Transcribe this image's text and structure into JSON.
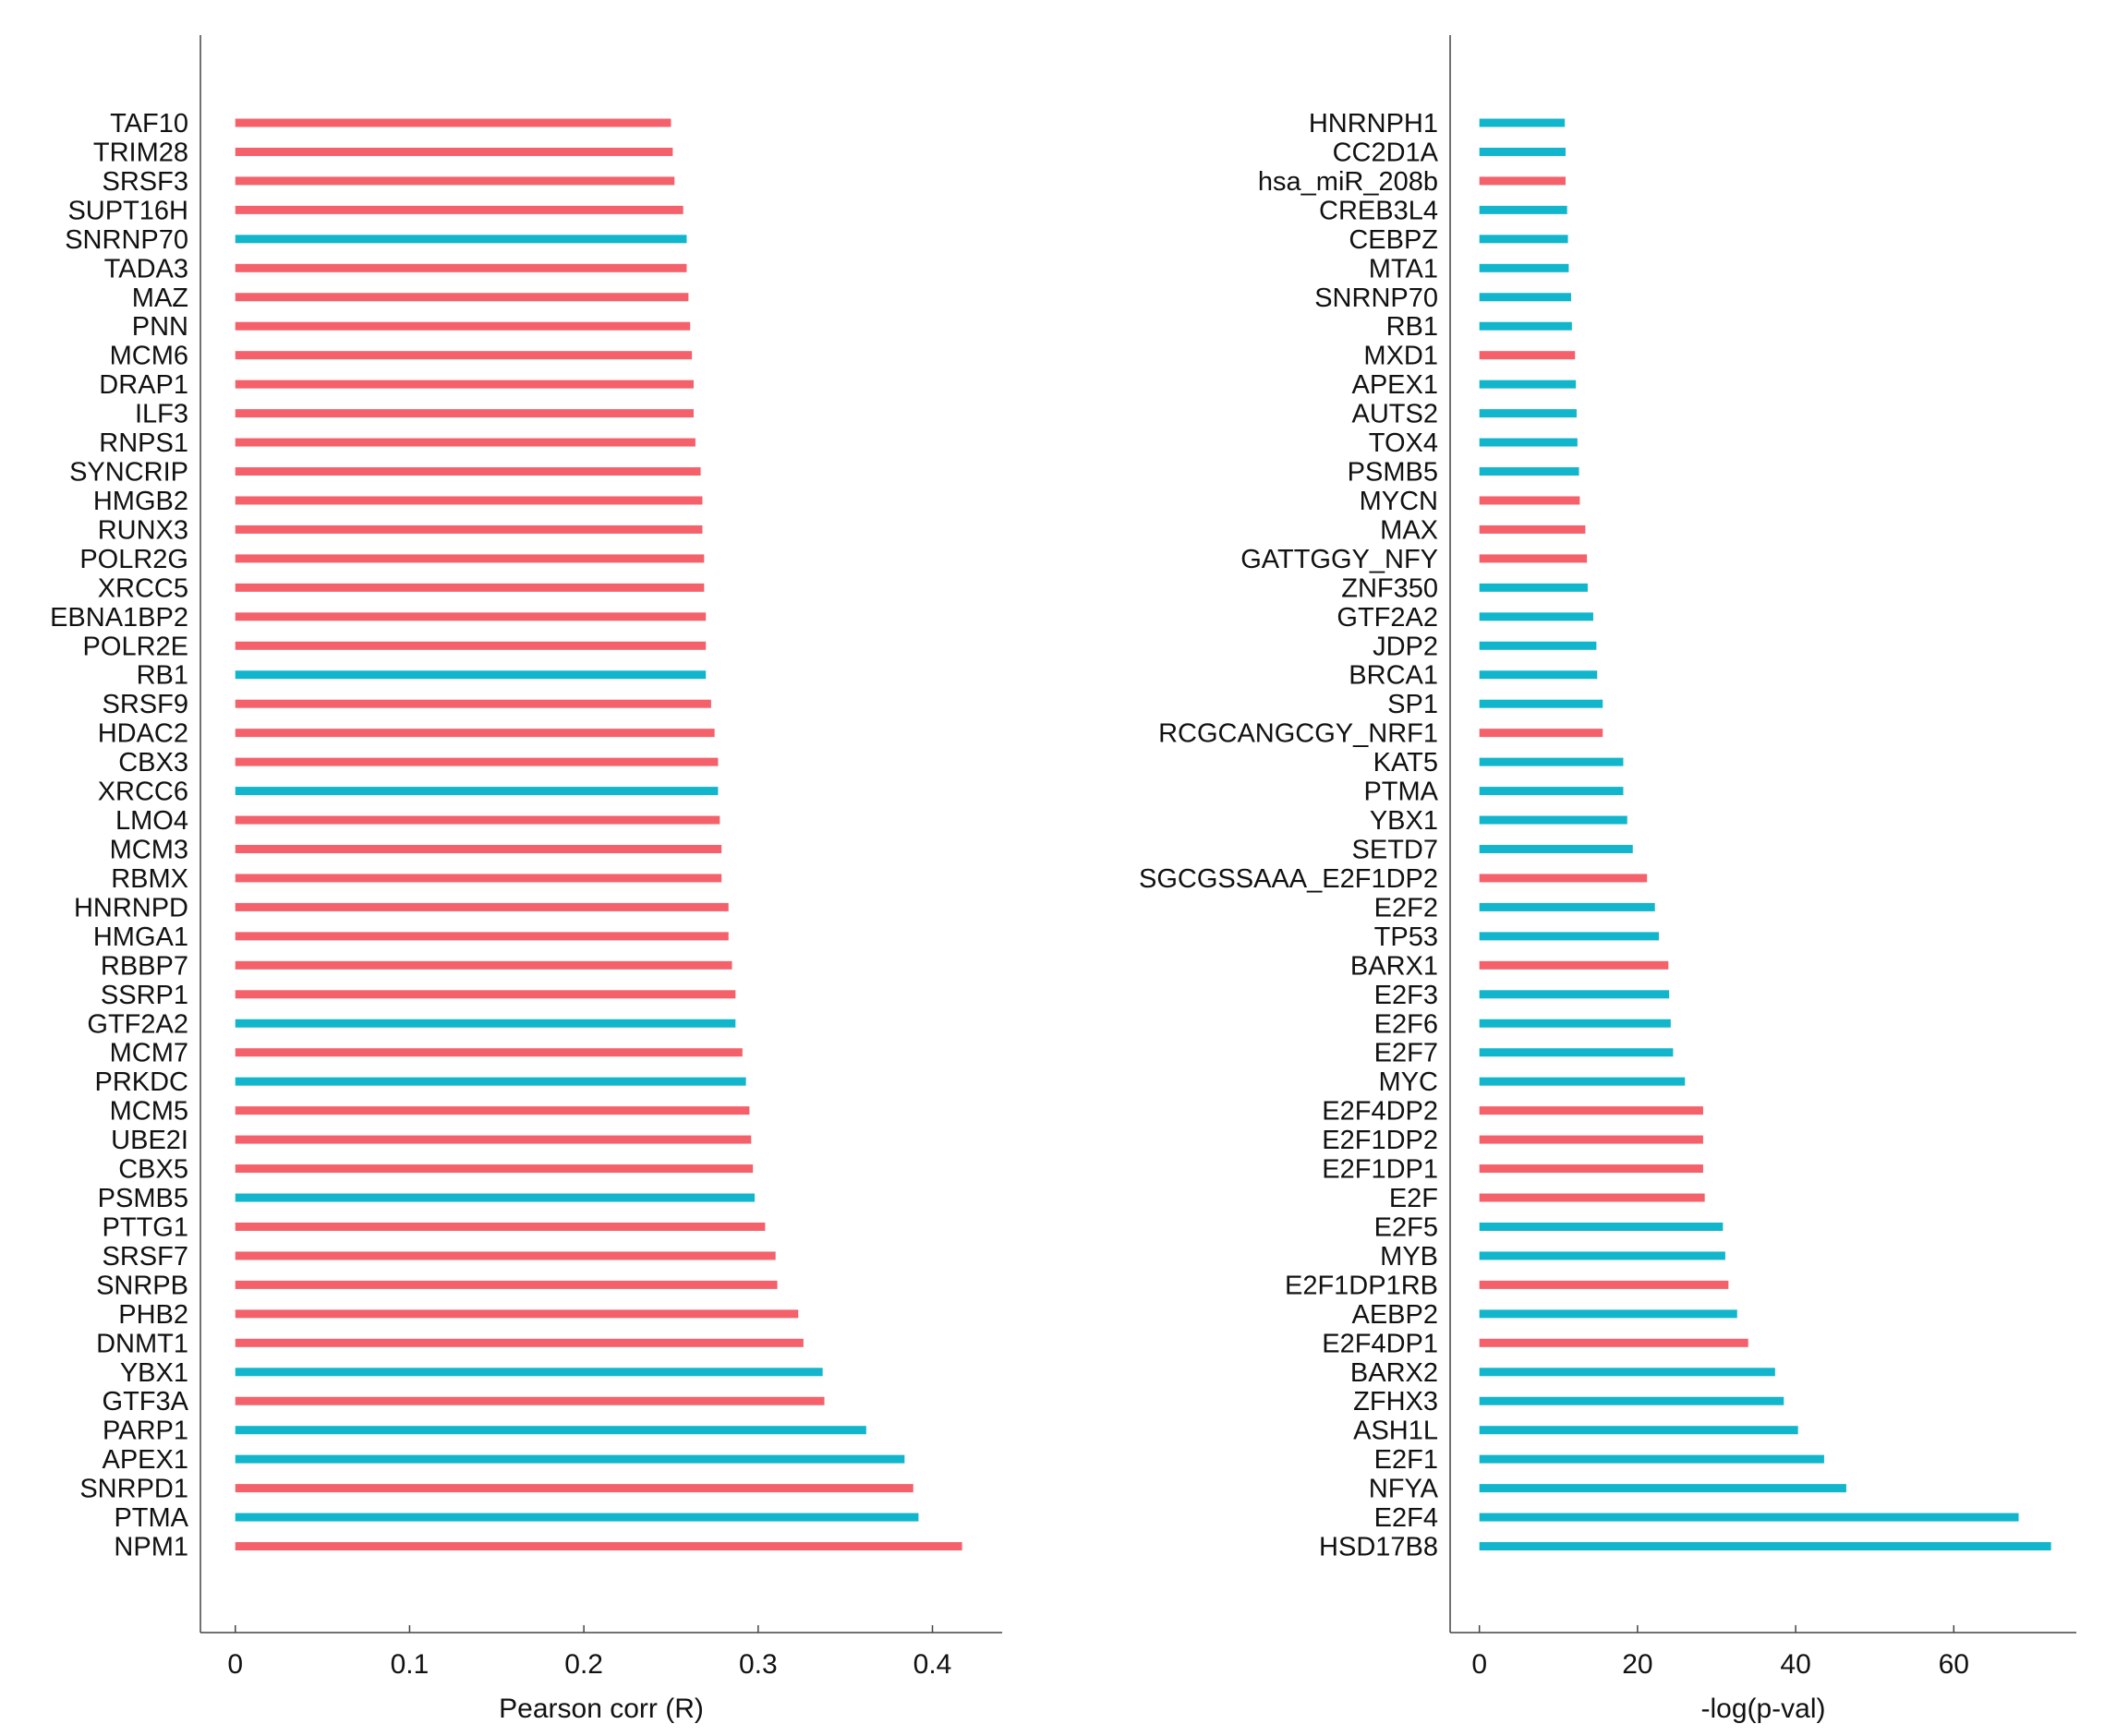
{
  "colors": {
    "red": "#f5616b",
    "blue": "#12b6cc",
    "axis": "#444444"
  },
  "chart_data": [
    {
      "type": "bar",
      "orientation": "horizontal",
      "title": "",
      "xlabel": "Pearson corr (R)",
      "ylabel": "",
      "xlim": [
        -0.02,
        0.44
      ],
      "xticks": [
        0,
        0.1,
        0.2,
        0.3,
        0.4
      ],
      "xtick_labels": [
        "0",
        "0.1",
        "0.2",
        "0.3",
        "0.4"
      ],
      "categories": [
        "TAF10",
        "TRIM28",
        "SRSF3",
        "SUPT16H",
        "SNRNP70",
        "TADA3",
        "MAZ",
        "PNN",
        "MCM6",
        "DRAP1",
        "ILF3",
        "RNPS1",
        "SYNCRIP",
        "HMGB2",
        "RUNX3",
        "POLR2G",
        "XRCC5",
        "EBNA1BP2",
        "POLR2E",
        "RB1",
        "SRSF9",
        "HDAC2",
        "CBX3",
        "XRCC6",
        "LMO4",
        "MCM3",
        "RBMX",
        "HNRNPD",
        "HMGA1",
        "RBBP7",
        "SSRP1",
        "GTF2A2",
        "MCM7",
        "PRKDC",
        "MCM5",
        "UBE2I",
        "CBX5",
        "PSMB5",
        "PTTG1",
        "SRSF7",
        "SNRPB",
        "PHB2",
        "DNMT1",
        "YBX1",
        "GTF3A",
        "PARP1",
        "APEX1",
        "SNRPD1",
        "PTMA",
        "NPM1"
      ],
      "values": [
        0.25,
        0.251,
        0.252,
        0.257,
        0.259,
        0.259,
        0.26,
        0.261,
        0.262,
        0.263,
        0.263,
        0.264,
        0.267,
        0.268,
        0.268,
        0.269,
        0.269,
        0.27,
        0.27,
        0.27,
        0.273,
        0.275,
        0.277,
        0.277,
        0.278,
        0.279,
        0.279,
        0.283,
        0.283,
        0.285,
        0.287,
        0.287,
        0.291,
        0.293,
        0.295,
        0.296,
        0.297,
        0.298,
        0.304,
        0.31,
        0.311,
        0.323,
        0.326,
        0.337,
        0.338,
        0.362,
        0.384,
        0.389,
        0.392,
        0.417
      ],
      "bar_colors": [
        "red",
        "red",
        "red",
        "red",
        "blue",
        "red",
        "red",
        "red",
        "red",
        "red",
        "red",
        "red",
        "red",
        "red",
        "red",
        "red",
        "red",
        "red",
        "red",
        "blue",
        "red",
        "red",
        "red",
        "blue",
        "red",
        "red",
        "red",
        "red",
        "red",
        "red",
        "red",
        "blue",
        "red",
        "blue",
        "red",
        "red",
        "red",
        "blue",
        "red",
        "red",
        "red",
        "red",
        "red",
        "blue",
        "red",
        "blue",
        "blue",
        "red",
        "blue",
        "red"
      ]
    },
    {
      "type": "bar",
      "orientation": "horizontal",
      "title": "",
      "xlabel": "-log(p-val)",
      "ylabel": "",
      "xlim": [
        -3.7,
        75.5
      ],
      "xticks": [
        0,
        20,
        40,
        60
      ],
      "xtick_labels": [
        "0",
        "20",
        "40",
        "60"
      ],
      "categories": [
        "HNRNPH1",
        "CC2D1A",
        "hsa_miR_208b",
        "CREB3L4",
        "CEBPZ",
        "MTA1",
        "SNRNP70",
        "RB1",
        "MXD1",
        "APEX1",
        "AUTS2",
        "TOX4",
        "PSMB5",
        "MYCN",
        "MAX",
        "GATTGGY_NFY",
        "ZNF350",
        "GTF2A2",
        "JDP2",
        "BRCA1",
        "SP1",
        "RCGCANGCGY_NRF1",
        "KAT5",
        "PTMA",
        "YBX1",
        "SETD7",
        "SGCGSSAAA_E2F1DP2",
        "E2F2",
        "TP53",
        "BARX1",
        "E2F3",
        "E2F6",
        "E2F7",
        "MYC",
        "E2F4DP2",
        "E2F1DP2",
        "E2F1DP1",
        "E2F",
        "E2F5",
        "MYB",
        "E2F1DP1RB",
        "AEBP2",
        "E2F4DP1",
        "BARX2",
        "ZFHX3",
        "ASH1L",
        "E2F1",
        "NFYA",
        "E2F4",
        "HSD17B8"
      ],
      "values": [
        10.8,
        10.9,
        10.9,
        11.1,
        11.2,
        11.3,
        11.6,
        11.7,
        12.1,
        12.2,
        12.3,
        12.4,
        12.6,
        12.7,
        13.4,
        13.6,
        13.7,
        14.4,
        14.8,
        14.9,
        15.6,
        15.6,
        18.2,
        18.2,
        18.7,
        19.4,
        21.2,
        22.2,
        22.7,
        23.9,
        24.0,
        24.2,
        24.5,
        26.0,
        28.3,
        28.3,
        28.3,
        28.5,
        30.8,
        31.1,
        31.5,
        32.6,
        34.0,
        37.4,
        38.5,
        40.3,
        43.6,
        46.4,
        68.2,
        72.3
      ],
      "bar_colors": [
        "blue",
        "blue",
        "red",
        "blue",
        "blue",
        "blue",
        "blue",
        "blue",
        "red",
        "blue",
        "blue",
        "blue",
        "blue",
        "red",
        "red",
        "red",
        "blue",
        "blue",
        "blue",
        "blue",
        "blue",
        "red",
        "blue",
        "blue",
        "blue",
        "blue",
        "red",
        "blue",
        "blue",
        "red",
        "blue",
        "blue",
        "blue",
        "blue",
        "red",
        "red",
        "red",
        "red",
        "blue",
        "blue",
        "red",
        "blue",
        "red",
        "blue",
        "blue",
        "blue",
        "blue",
        "blue",
        "blue",
        "blue"
      ]
    }
  ]
}
